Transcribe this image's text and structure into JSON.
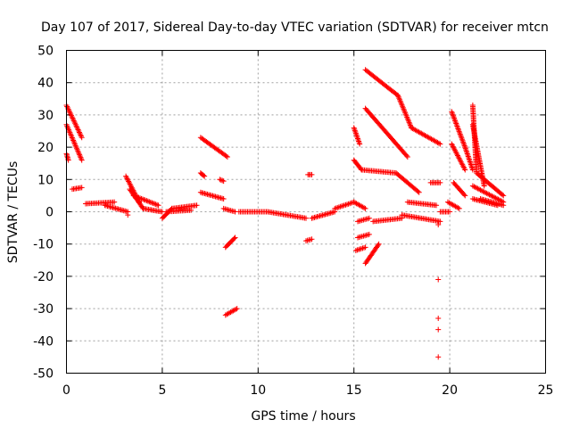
{
  "chart_data": {
    "type": "scatter",
    "title": "Day 107 of 2017, Sidereal Day-to-day VTEC variation (SDTVAR) for receiver mtcn",
    "xlabel": "GPS time / hours",
    "ylabel": "SDTVAR / TECUs",
    "xlim": [
      0,
      25
    ],
    "ylim": [
      -50,
      50
    ],
    "xticks": [
      "0",
      "5",
      "10",
      "15",
      "20",
      "25"
    ],
    "yticks": [
      "50",
      "40",
      "30",
      "20",
      "10",
      "0",
      "-10",
      "-20",
      "-30",
      "-40",
      "-50"
    ],
    "grid": true,
    "marker": "+",
    "color": "#ff0000",
    "segments": [
      {
        "x0": 0.0,
        "y0": 33,
        "x1": 0.8,
        "y1": 23
      },
      {
        "x0": 0.0,
        "y0": 27,
        "x1": 0.8,
        "y1": 16
      },
      {
        "x0": 0.0,
        "y0": 18,
        "x1": 0.1,
        "y1": 16
      },
      {
        "x0": 0.3,
        "y0": 7,
        "x1": 0.8,
        "y1": 7.5
      },
      {
        "x0": 1.0,
        "y0": 2.5,
        "x1": 2.5,
        "y1": 3
      },
      {
        "x0": 2.0,
        "y0": 2,
        "x1": 3.2,
        "y1": 0
      },
      {
        "x0": 3.1,
        "y0": 11,
        "x1": 3.8,
        "y1": 3
      },
      {
        "x0": 3.3,
        "y0": 7,
        "x1": 4.0,
        "y1": 1
      },
      {
        "x0": 3.5,
        "y0": 5,
        "x1": 4.8,
        "y1": 2
      },
      {
        "x0": 4.0,
        "y0": 1,
        "x1": 5.0,
        "y1": 0
      },
      {
        "x0": 5.0,
        "y0": -2,
        "x1": 5.5,
        "y1": 1
      },
      {
        "x0": 5.5,
        "y0": 1,
        "x1": 6.8,
        "y1": 2
      },
      {
        "x0": 5.2,
        "y0": 0,
        "x1": 6.5,
        "y1": 0.5
      },
      {
        "x0": 7.0,
        "y0": 23,
        "x1": 8.4,
        "y1": 17
      },
      {
        "x0": 7.0,
        "y0": 12,
        "x1": 7.2,
        "y1": 11
      },
      {
        "x0": 7.0,
        "y0": 6,
        "x1": 8.2,
        "y1": 4
      },
      {
        "x0": 8.0,
        "y0": 10,
        "x1": 8.2,
        "y1": 9.5
      },
      {
        "x0": 8.2,
        "y0": 1,
        "x1": 8.8,
        "y1": 0
      },
      {
        "x0": 8.3,
        "y0": -11,
        "x1": 8.8,
        "y1": -8
      },
      {
        "x0": 8.3,
        "y0": -32,
        "x1": 8.9,
        "y1": -30
      },
      {
        "x0": 9.0,
        "y0": 0,
        "x1": 10.5,
        "y1": 0
      },
      {
        "x0": 10.5,
        "y0": 0,
        "x1": 12.5,
        "y1": -2
      },
      {
        "x0": 12.5,
        "y0": -9,
        "x1": 12.8,
        "y1": -8.5
      },
      {
        "x0": 12.6,
        "y0": 11.5,
        "x1": 12.8,
        "y1": 11.5
      },
      {
        "x0": 12.8,
        "y0": -2,
        "x1": 14.0,
        "y1": 0
      },
      {
        "x0": 14.0,
        "y0": 1,
        "x1": 15.0,
        "y1": 3
      },
      {
        "x0": 15.0,
        "y0": 26,
        "x1": 15.3,
        "y1": 21
      },
      {
        "x0": 15.0,
        "y0": 16,
        "x1": 15.4,
        "y1": 13
      },
      {
        "x0": 15.0,
        "y0": 3,
        "x1": 15.6,
        "y1": 1
      },
      {
        "x0": 15.1,
        "y0": -12,
        "x1": 15.6,
        "y1": -11
      },
      {
        "x0": 15.2,
        "y0": -3,
        "x1": 15.8,
        "y1": -2
      },
      {
        "x0": 15.2,
        "y0": -8,
        "x1": 15.8,
        "y1": -7
      },
      {
        "x0": 15.6,
        "y0": 44,
        "x1": 17.3,
        "y1": 36
      },
      {
        "x0": 17.3,
        "y0": 36,
        "x1": 18.0,
        "y1": 26
      },
      {
        "x0": 15.6,
        "y0": 32,
        "x1": 17.8,
        "y1": 17
      },
      {
        "x0": 15.4,
        "y0": 13,
        "x1": 17.2,
        "y1": 12
      },
      {
        "x0": 17.2,
        "y0": 12,
        "x1": 18.4,
        "y1": 6
      },
      {
        "x0": 15.6,
        "y0": -16,
        "x1": 16.3,
        "y1": -10
      },
      {
        "x0": 16.0,
        "y0": -3,
        "x1": 17.5,
        "y1": -2
      },
      {
        "x0": 17.5,
        "y0": -1,
        "x1": 19.5,
        "y1": -3
      },
      {
        "x0": 18.0,
        "y0": 26,
        "x1": 19.5,
        "y1": 21
      },
      {
        "x0": 17.8,
        "y0": 3,
        "x1": 19.3,
        "y1": 2
      },
      {
        "x0": 19.0,
        "y0": 9,
        "x1": 19.5,
        "y1": 9
      },
      {
        "x0": 19.5,
        "y0": 0,
        "x1": 20.0,
        "y1": 0
      },
      {
        "x0": 19.9,
        "y0": 3,
        "x1": 20.5,
        "y1": 1
      },
      {
        "x0": 20.1,
        "y0": 31,
        "x1": 20.8,
        "y1": 20
      },
      {
        "x0": 20.8,
        "y0": 20,
        "x1": 21.2,
        "y1": 13
      },
      {
        "x0": 20.1,
        "y0": 21,
        "x1": 20.8,
        "y1": 13
      },
      {
        "x0": 20.2,
        "y0": 9,
        "x1": 20.8,
        "y1": 5
      },
      {
        "x0": 21.2,
        "y0": 33,
        "x1": 21.4,
        "y1": 12
      },
      {
        "x0": 21.2,
        "y0": 27,
        "x1": 21.8,
        "y1": 8
      },
      {
        "x0": 21.4,
        "y0": 12,
        "x1": 22.8,
        "y1": 5
      },
      {
        "x0": 21.2,
        "y0": 8,
        "x1": 22.8,
        "y1": 3
      },
      {
        "x0": 21.6,
        "y0": 4,
        "x1": 22.8,
        "y1": 2
      },
      {
        "x0": 21.2,
        "y0": 4,
        "x1": 22.5,
        "y1": 2
      }
    ],
    "points": [
      {
        "x": 3.2,
        "y": -1
      },
      {
        "x": 19.4,
        "y": -4
      },
      {
        "x": 19.4,
        "y": -21
      },
      {
        "x": 19.4,
        "y": -33
      },
      {
        "x": 19.4,
        "y": -36.5
      },
      {
        "x": 19.4,
        "y": -45
      }
    ]
  }
}
